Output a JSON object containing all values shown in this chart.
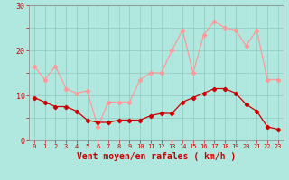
{
  "hours": [
    0,
    1,
    2,
    3,
    4,
    5,
    6,
    7,
    8,
    9,
    10,
    11,
    12,
    13,
    14,
    15,
    16,
    17,
    18,
    19,
    20,
    21,
    22,
    23
  ],
  "wind_avg": [
    9.5,
    8.5,
    7.5,
    7.5,
    6.5,
    4.5,
    4.0,
    4.0,
    4.5,
    4.5,
    4.5,
    5.5,
    6.0,
    6.0,
    8.5,
    9.5,
    10.5,
    11.5,
    11.5,
    10.5,
    8.0,
    6.5,
    3.0,
    2.5
  ],
  "wind_gust": [
    16.5,
    13.5,
    16.5,
    11.5,
    10.5,
    11.0,
    3.0,
    8.5,
    8.5,
    8.5,
    13.5,
    15.0,
    15.0,
    20.0,
    24.5,
    15.0,
    23.5,
    26.5,
    25.0,
    24.5,
    21.0,
    24.5,
    13.5,
    13.5
  ],
  "xlabel": "Vent moyen/en rafales ( km/h )",
  "ylim": [
    0,
    30
  ],
  "yticks": [
    0,
    5,
    10,
    15,
    20,
    25,
    30
  ],
  "ytick_labels": [
    "0",
    "",
    "10",
    "",
    "20",
    "",
    "30"
  ],
  "bg_color": "#b0e8e0",
  "grid_color": "#90c8c0",
  "avg_color": "#cc0000",
  "gust_color": "#ff9999",
  "xlabel_color": "#cc0000",
  "tick_color": "#cc0000",
  "spine_color": "#888888"
}
